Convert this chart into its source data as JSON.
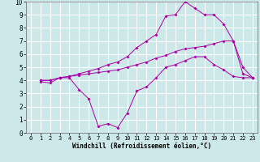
{
  "xlabel": "Windchill (Refroidissement éolien,°C)",
  "background_color": "#cce8e8",
  "grid_color": "#ffffff",
  "line_color": "#aa00aa",
  "xlim": [
    -0.5,
    23.5
  ],
  "ylim": [
    0,
    10
  ],
  "xticks": [
    0,
    1,
    2,
    3,
    4,
    5,
    6,
    7,
    8,
    9,
    10,
    11,
    12,
    13,
    14,
    15,
    16,
    17,
    18,
    19,
    20,
    21,
    22,
    23
  ],
  "yticks": [
    0,
    1,
    2,
    3,
    4,
    5,
    6,
    7,
    8,
    9,
    10
  ],
  "line1_x": [
    1,
    2,
    3,
    4,
    5,
    6,
    7,
    8,
    9,
    10,
    11,
    12,
    13,
    14,
    15,
    16,
    17,
    18,
    19,
    20,
    21,
    22,
    23
  ],
  "line1_y": [
    3.9,
    3.8,
    4.2,
    4.2,
    3.3,
    2.6,
    0.5,
    0.7,
    0.4,
    1.5,
    3.2,
    3.5,
    4.2,
    5.0,
    5.2,
    5.5,
    5.8,
    5.8,
    5.2,
    4.8,
    4.3,
    4.2,
    4.2
  ],
  "line2_x": [
    1,
    2,
    3,
    4,
    5,
    6,
    7,
    8,
    9,
    10,
    11,
    12,
    13,
    14,
    15,
    16,
    17,
    18,
    19,
    20,
    21,
    22,
    23
  ],
  "line2_y": [
    4.0,
    4.0,
    4.2,
    4.3,
    4.4,
    4.5,
    4.6,
    4.7,
    4.8,
    5.0,
    5.2,
    5.4,
    5.7,
    5.9,
    6.2,
    6.4,
    6.5,
    6.6,
    6.8,
    7.0,
    7.0,
    4.5,
    4.2
  ],
  "line3_x": [
    1,
    2,
    3,
    4,
    5,
    6,
    7,
    8,
    9,
    10,
    11,
    12,
    13,
    14,
    15,
    16,
    17,
    18,
    19,
    20,
    21,
    22,
    23
  ],
  "line3_y": [
    4.0,
    4.0,
    4.2,
    4.3,
    4.5,
    4.7,
    4.9,
    5.2,
    5.4,
    5.8,
    6.5,
    7.0,
    7.5,
    8.9,
    9.0,
    10.0,
    9.5,
    9.0,
    9.0,
    8.3,
    7.0,
    5.0,
    4.2
  ]
}
